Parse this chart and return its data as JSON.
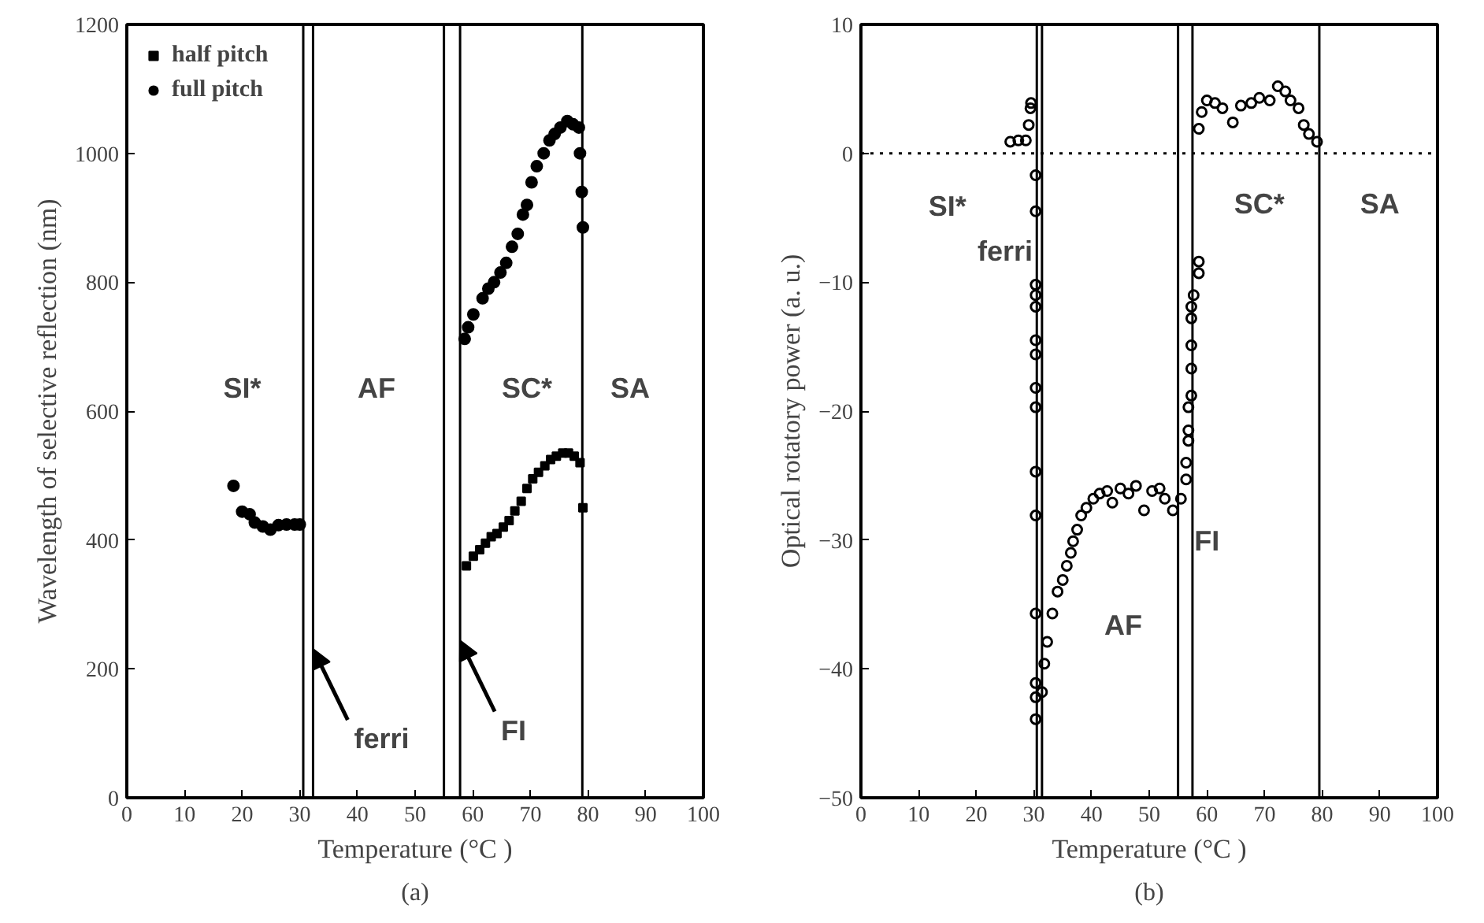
{
  "chart_data": [
    {
      "type": "scatter",
      "title": "(a)",
      "xlabel": "Temperature (°C )",
      "ylabel": "Wavelength of selective reflection (nm)",
      "xlim": [
        0,
        100
      ],
      "ylim": [
        0,
        1200
      ],
      "xticks": [
        0,
        10,
        20,
        30,
        40,
        50,
        60,
        70,
        80,
        90,
        100
      ],
      "yticks": [
        0,
        200,
        400,
        600,
        800,
        1000,
        1200
      ],
      "grid": false,
      "legend": "top left",
      "series": [
        {
          "name": "half pitch",
          "color": "#000000",
          "marker": "square",
          "x": [
            58.9,
            60.1,
            61.2,
            62.2,
            63.2,
            64.2,
            65.3,
            66.3,
            67.3,
            68.4,
            69.4,
            70.4,
            71.4,
            72.5,
            73.5,
            74.5,
            75.6,
            76.6,
            77.6,
            78.6,
            79.1
          ],
          "values": [
            360,
            375,
            385,
            395,
            405,
            410,
            420,
            430,
            445,
            460,
            480,
            495,
            505,
            515,
            525,
            530,
            535,
            535,
            530,
            520,
            450
          ]
        },
        {
          "name": "full pitch",
          "color": "#000000",
          "marker": "circle",
          "x": [
            18.5,
            20,
            21.3,
            22.2,
            23.6,
            24.9,
            26.3,
            27.7,
            29.1,
            30,
            null,
            58.6,
            59.2,
            60.1,
            61.7,
            62.7,
            63.7,
            64.8,
            65.8,
            66.8,
            67.8,
            68.7,
            69.4,
            70.2,
            71.1,
            72.3,
            73.3,
            74.2,
            75.2,
            76.4,
            77.4,
            78.4,
            78.6,
            78.9,
            79.1
          ],
          "values": [
            484,
            444,
            440,
            427,
            421,
            416,
            423,
            424,
            424,
            424,
            null,
            712,
            730,
            750,
            775,
            790,
            800,
            815,
            830,
            855,
            875,
            905,
            920,
            955,
            980,
            1000,
            1020,
            1030,
            1040,
            1050,
            1045,
            1040,
            1000,
            940,
            885
          ]
        }
      ],
      "ref_lines": [
        {
          "axis": "x",
          "value": 30.6
        },
        {
          "axis": "x",
          "value": 32.3
        },
        {
          "axis": "x",
          "value": 55
        },
        {
          "axis": "x",
          "value": 57.8
        },
        {
          "axis": "x",
          "value": 79
        }
      ],
      "annotations": [
        "SI*",
        "AF",
        "SC*",
        "SA",
        {
          "text": "ferri",
          "x": 32.3,
          "y": 231
        },
        {
          "text": "FI",
          "x": 57.8,
          "y": 244
        }
      ]
    },
    {
      "type": "scatter",
      "title": "(b)",
      "xlabel": "Temperature (°C )",
      "ylabel": "Optical rotatory power (a. u.)",
      "xlim": [
        0,
        100
      ],
      "ylim": [
        -50,
        10
      ],
      "xticks": [
        0,
        10,
        20,
        30,
        40,
        50,
        60,
        70,
        80,
        90,
        100
      ],
      "yticks": [
        -50,
        -40,
        -30,
        -20,
        -10,
        0,
        10
      ],
      "grid": false,
      "legend": false,
      "marker": "circle",
      "series": [
        {
          "color": "#000000",
          "x": [
            25.9,
            27.3,
            28.6,
            29.1,
            29.4,
            29.5,
            30.3,
            30.3,
            30.3,
            30.3,
            30.3,
            30.3,
            30.3,
            30.3,
            30.3,
            30.3,
            30.3,
            30.3,
            30.3,
            30.3,
            30.3,
            31.4,
            31.8,
            32.3,
            33.2,
            34.1,
            35,
            35.7,
            36.4,
            36.8,
            37.5,
            38.2,
            39.1,
            40.3,
            41.4,
            42.7,
            43.6,
            45,
            46.4,
            47.7,
            49.1,
            50.5,
            51.8,
            52.7,
            54.1,
            55.5,
            56.4,
            56.4,
            56.8,
            56.8,
            56.8,
            57.3,
            57.3,
            57.3,
            57.3,
            57.3,
            57.7,
            58.6,
            58.6,
            58.6,
            59.1,
            60,
            61.4,
            62.7,
            64.5,
            65.9,
            67.7,
            69.1,
            70.9,
            72.3,
            73.6,
            74.5,
            75.9,
            76.8,
            77.7,
            79.1
          ],
          "values": [
            0.9,
            1.0,
            1.0,
            2.2,
            3.5,
            3.9,
            -1.7,
            -4.5,
            -10.2,
            -11,
            -11.9,
            -14.5,
            -15.6,
            -18.2,
            -19.7,
            -24.7,
            -28.1,
            -35.7,
            -41.1,
            -42.2,
            -43.9,
            -41.8,
            -39.6,
            -37.9,
            -35.7,
            -34,
            -33.1,
            -32,
            -31,
            -30.1,
            -29.2,
            -28.1,
            -27.5,
            -26.8,
            -26.4,
            -26.2,
            -27.1,
            -26,
            -26.4,
            -25.8,
            -27.7,
            -26.2,
            -26,
            -26.8,
            -27.7,
            -26.8,
            -25.3,
            -24,
            -22.3,
            -21.5,
            -19.7,
            -18.8,
            -16.7,
            -14.9,
            -12.8,
            -11.9,
            -11,
            -9.3,
            -8.4,
            1.9,
            3.2,
            4.1,
            3.9,
            3.5,
            2.4,
            3.7,
            3.9,
            4.3,
            4.1,
            5.2,
            4.8,
            4.1,
            3.5,
            2.2,
            1.5,
            0.9
          ]
        }
      ],
      "ref_lines": [
        {
          "axis": "x",
          "value": 30.5
        },
        {
          "axis": "x",
          "value": 31.4
        },
        {
          "axis": "x",
          "value": 55
        },
        {
          "axis": "x",
          "value": 57.5
        },
        {
          "axis": "x",
          "value": 79.5
        },
        {
          "axis": "y",
          "value": 0,
          "line_style": "dotted"
        }
      ],
      "annotations": [
        "SI*",
        "ferri",
        "SC*",
        "SA",
        "FI",
        "AF"
      ]
    }
  ]
}
